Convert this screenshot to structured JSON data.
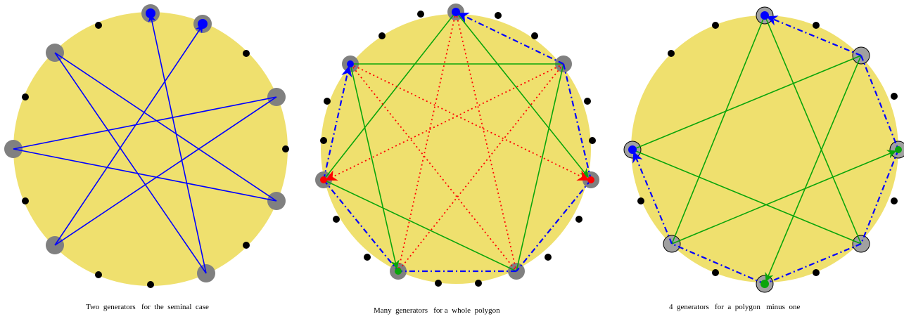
{
  "colors": {
    "disk": "#efe06e",
    "node_halo": "#808080",
    "node_dot": "#000000",
    "blue": "#0000ff",
    "green": "#0aa50a",
    "red": "#ff0000"
  },
  "panels": [
    {
      "name": "panel-seminal",
      "caption": "Two  generators   for  the  seminal  case"
    },
    {
      "name": "panel-whole-polygon",
      "caption": "Many  generators   for a  whole  polygon"
    },
    {
      "name": "panel-polygon-minus-one",
      "caption": "4  generators   for  a  polygon   minus  one"
    }
  ]
}
